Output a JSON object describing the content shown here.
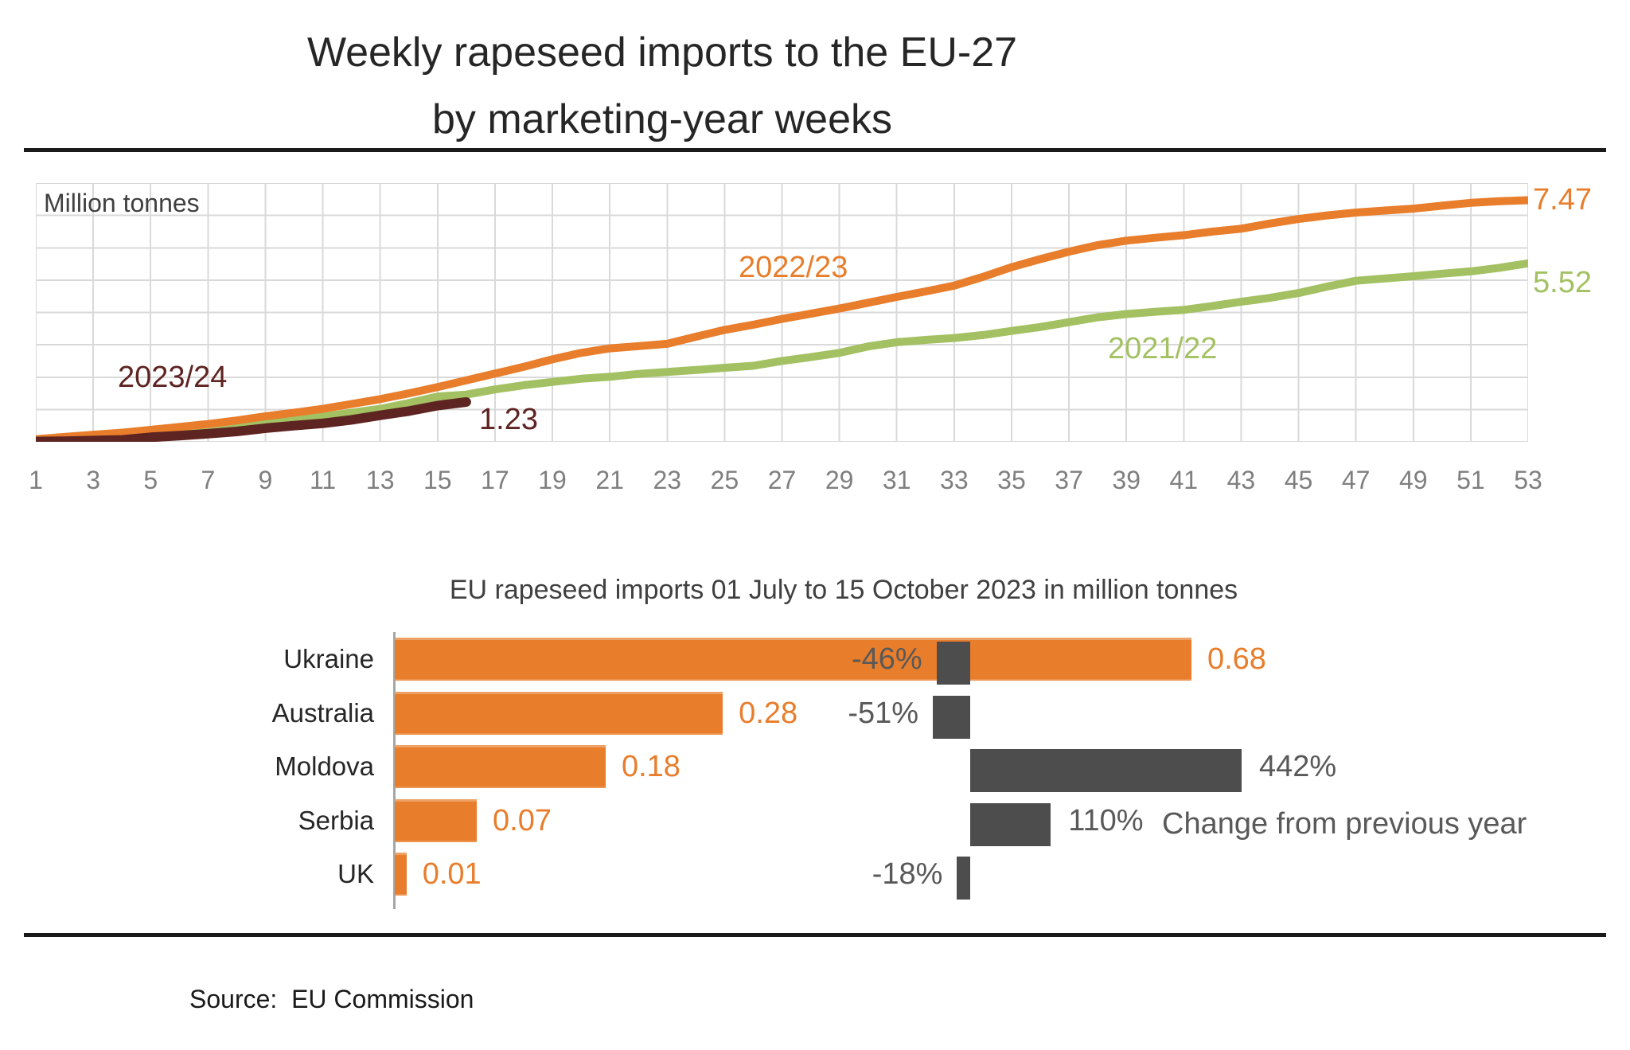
{
  "page": {
    "title_line1": "Weekly rapeseed imports to the EU-27",
    "title_line2": "by marketing-year weeks",
    "source_label": "Source:  EU Commission"
  },
  "colors": {
    "orange": "#e87d2b",
    "green": "#a3c162",
    "maroon": "#5e2422",
    "gray_bar": "#4d4d4d",
    "gridline": "#d9d9d9",
    "tick_text": "#7f7f7f"
  },
  "chart_data": [
    {
      "type": "line",
      "title": "Weekly rapeseed imports to the EU-27 by marketing-year weeks",
      "ylabel": "Million tonnes",
      "xlabel": "",
      "ylim": [
        0,
        8
      ],
      "xlim": [
        1,
        53
      ],
      "grid": true,
      "x_ticks": [
        1,
        3,
        5,
        7,
        9,
        11,
        13,
        15,
        17,
        19,
        21,
        23,
        25,
        27,
        29,
        31,
        33,
        35,
        37,
        39,
        41,
        43,
        45,
        47,
        49,
        51,
        53
      ],
      "series": [
        {
          "name": "2021/22",
          "color_key": "green",
          "end_label": "5.52",
          "start_week": 1,
          "values": [
            0.03,
            0.06,
            0.08,
            0.12,
            0.17,
            0.23,
            0.3,
            0.42,
            0.55,
            0.67,
            0.78,
            0.9,
            1.02,
            1.2,
            1.4,
            1.46,
            1.62,
            1.75,
            1.85,
            1.95,
            2.01,
            2.1,
            2.16,
            2.22,
            2.29,
            2.35,
            2.5,
            2.62,
            2.75,
            2.95,
            3.08,
            3.15,
            3.21,
            3.3,
            3.43,
            3.55,
            3.7,
            3.85,
            3.95,
            4.02,
            4.08,
            4.2,
            4.33,
            4.45,
            4.6,
            4.8,
            4.98,
            5.05,
            5.12,
            5.2,
            5.27,
            5.38,
            5.52
          ]
        },
        {
          "name": "2022/23",
          "color_key": "orange",
          "end_label": "7.47",
          "start_week": 1,
          "values": [
            0.08,
            0.15,
            0.22,
            0.28,
            0.37,
            0.46,
            0.55,
            0.66,
            0.79,
            0.9,
            1.02,
            1.17,
            1.32,
            1.5,
            1.69,
            1.9,
            2.11,
            2.32,
            2.55,
            2.75,
            2.89,
            2.96,
            3.03,
            3.25,
            3.46,
            3.62,
            3.8,
            3.96,
            4.12,
            4.3,
            4.48,
            4.65,
            4.83,
            5.1,
            5.4,
            5.65,
            5.88,
            6.08,
            6.22,
            6.31,
            6.39,
            6.5,
            6.59,
            6.75,
            6.89,
            7.0,
            7.09,
            7.15,
            7.21,
            7.3,
            7.39,
            7.44,
            7.47
          ]
        },
        {
          "name": "2023/24",
          "color_key": "maroon",
          "end_label": "1.23",
          "start_week": 1,
          "values": [
            0.01,
            0.02,
            0.04,
            0.06,
            0.14,
            0.19,
            0.25,
            0.32,
            0.42,
            0.5,
            0.57,
            0.68,
            0.82,
            0.95,
            1.12,
            1.23
          ]
        }
      ]
    },
    {
      "type": "bar",
      "title": "EU rapeseed imports 01 July to 15 October 2023 in million tonnes",
      "note": "Change from previous year",
      "categories": [
        "Ukraine",
        "Australia",
        "Moldova",
        "Serbia",
        "UK"
      ],
      "imports_mt": [
        0.68,
        0.28,
        0.18,
        0.07,
        0.01
      ],
      "imports_labels": [
        "0.68",
        "0.28",
        "0.18",
        "0.07",
        "0.01"
      ],
      "change_pct": [
        -46,
        -51,
        442,
        110,
        -18
      ],
      "change_labels": [
        "-46%",
        "-51%",
        "442%",
        "110%",
        "-18%"
      ]
    }
  ]
}
